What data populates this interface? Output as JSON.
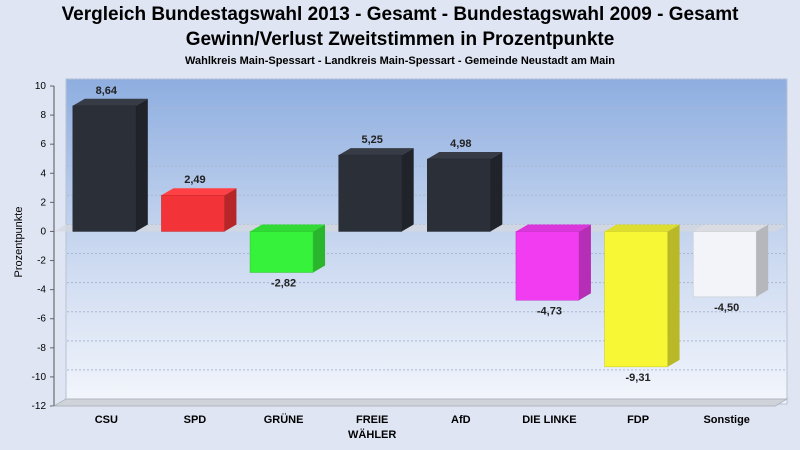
{
  "chart_data": {
    "type": "bar",
    "title": "Vergleich Bundestagswahl 2013 - Gesamt - Bundestagswahl 2009 - Gesamt",
    "subtitle": "Gewinn/Verlust Zweitstimmen in Prozentpunkte",
    "caption": "Wahlkreis Main-Spessart - Landkreis Main-Spessart - Gemeinde Neustadt am Main",
    "ylabel": "Prozentpunkte",
    "xlabel": "",
    "ylim": [
      -12,
      10
    ],
    "yticks": [
      "10",
      "8",
      "6",
      "4",
      "2",
      "0",
      "-2",
      "-4",
      "-6",
      "-8",
      "-10",
      "-12"
    ],
    "categories": [
      {
        "line1": "CSU",
        "line2": ""
      },
      {
        "line1": "SPD",
        "line2": ""
      },
      {
        "line1": "GRÜNE",
        "line2": ""
      },
      {
        "line1": "FREIE",
        "line2": "WÄHLER"
      },
      {
        "line1": "AfD",
        "line2": ""
      },
      {
        "line1": "DIE LINKE",
        "line2": ""
      },
      {
        "line1": "FDP",
        "line2": ""
      },
      {
        "line1": "Sonstige",
        "line2": ""
      }
    ],
    "values": [
      8.64,
      2.49,
      -2.82,
      5.25,
      4.98,
      -4.73,
      -9.31,
      -4.5
    ],
    "value_labels": [
      "8,64",
      "2,49",
      "-2,82",
      "5,25",
      "4,98",
      "-4,73",
      "-9,31",
      "-4,50"
    ],
    "colors": [
      "#2b2f38",
      "#f23337",
      "#36f23a",
      "#2b2f38",
      "#2b2f38",
      "#f23cf2",
      "#f7f735",
      "#f2f4fa"
    ],
    "grid": true,
    "legend": "none"
  }
}
